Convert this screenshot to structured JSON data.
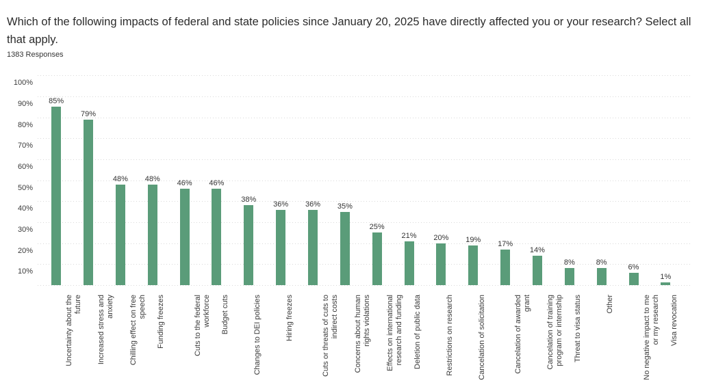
{
  "page": {
    "background_color": "#ffffff"
  },
  "chart_data": {
    "type": "bar",
    "title": "Which of the following impacts of federal and state policies since January 20, 2025 have directly affected you or your research? Select all that apply.",
    "subtitle": "1383 Responses",
    "xlabel": "",
    "ylabel": "",
    "ylim": [
      0,
      100
    ],
    "ytick_labels": [
      "10%",
      "20%",
      "30%",
      "40%",
      "50%",
      "60%",
      "70%",
      "80%",
      "90%",
      "100%"
    ],
    "grid": "horizontal-dotted",
    "legend": "none",
    "bar_color": "#5a9c79",
    "grid_color": "#d8d8d8",
    "text_color": "#333333",
    "value_suffix": "%",
    "categories": [
      "Uncertainty about the\nfuture",
      "Increased stress and\nanxiety",
      "Chilling effect on free\nspeech",
      "Funding freezes",
      "Cuts to the federal\nworkforce",
      "Budget cuts",
      "Changes to DEI policies",
      "Hiring freezes",
      "Cuts or threats of cuts to\nindirect costs",
      "Concerns about human\nrights violations",
      "Effects on international\nresearch and funding",
      "Deletion of public data",
      "Restrictions on research",
      "Cancelation of solicitation",
      "Cancelation of awarded\ngrant",
      "Cancelation of training\nprogram or internship",
      "Threat to visa status",
      "Other",
      "No negative impact to me\nor my research",
      "Visa revocation"
    ],
    "values": [
      85,
      79,
      48,
      48,
      46,
      46,
      38,
      36,
      36,
      35,
      25,
      21,
      20,
      19,
      17,
      14,
      8,
      8,
      6,
      1
    ]
  }
}
